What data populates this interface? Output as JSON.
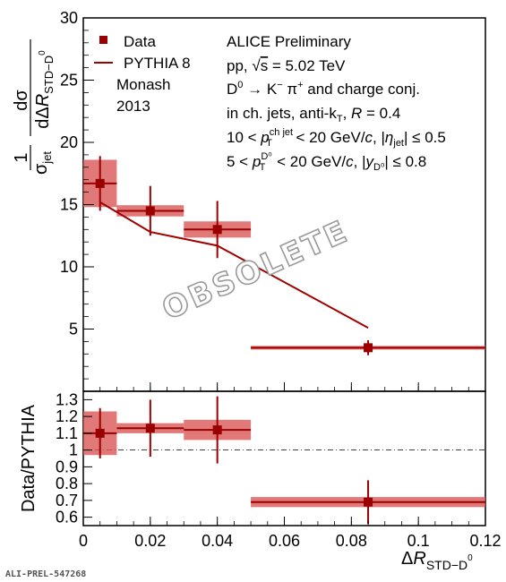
{
  "chart_data": [
    {
      "type": "scatter",
      "xlabel": "ΔR_STD–D⁰",
      "ylabel": "1/σ_jet dσ/dΔR_STD–D⁰",
      "xlim": [
        0,
        0.12
      ],
      "ylim": [
        0,
        30
      ],
      "xticks": [
        "0",
        "0.02",
        "0.04",
        "0.06",
        "0.08",
        "0.1",
        "0.12"
      ],
      "yticks": [
        "5",
        "10",
        "15",
        "20",
        "25",
        "30"
      ],
      "bins": [
        [
          0,
          0.01
        ],
        [
          0.01,
          0.03
        ],
        [
          0.03,
          0.05
        ],
        [
          0.05,
          0.12
        ]
      ],
      "series": [
        {
          "name": "Data",
          "x": [
            0.005,
            0.02,
            0.04,
            0.085
          ],
          "y": [
            16.7,
            14.5,
            13.0,
            3.5
          ],
          "stat_err": [
            2.2,
            2.0,
            2.3,
            0.6
          ],
          "sys_err": [
            1.9,
            0.45,
            0.65,
            0.15
          ]
        },
        {
          "name": "PYTHIA 8",
          "x": [
            0.005,
            0.02,
            0.04,
            0.085
          ],
          "y": [
            15.2,
            12.8,
            11.7,
            5.1
          ]
        }
      ],
      "legend": [
        "Data",
        "PYTHIA 8",
        "Monash",
        "2013"
      ],
      "annotations": [
        "ALICE Preliminary",
        "pp, √s = 5.02 TeV",
        "D⁰ → K⁻ π⁺ and charge conj.",
        "in ch. jets, anti-k_T, R = 0.4",
        "10 < p_T^ch jet < 20 GeV/c, |η_jet| ≤ 0.5",
        "5 < p_T^D⁰ < 20 GeV/c, |y_D⁰| ≤ 0.8"
      ],
      "watermark": "OBSOLETE"
    },
    {
      "type": "scatter",
      "xlabel": "ΔR_STD–D⁰",
      "ylabel": "Data/PYTHIA",
      "xlim": [
        0,
        0.12
      ],
      "ylim": [
        0.55,
        1.35
      ],
      "xticks": [
        "0",
        "0.02",
        "0.04",
        "0.06",
        "0.08",
        "0.1",
        "0.12"
      ],
      "yticks": [
        "0.6",
        "0.7",
        "0.8",
        "0.9",
        "1",
        "1.1",
        "1.2",
        "1.3"
      ],
      "reference_line": 1.0,
      "series": [
        {
          "name": "Data/PYTHIA",
          "x": [
            0.005,
            0.02,
            0.04,
            0.085
          ],
          "y": [
            1.1,
            1.13,
            1.12,
            0.69
          ],
          "stat_err": [
            0.15,
            0.17,
            0.2,
            0.13
          ],
          "sys_err": [
            0.13,
            0.03,
            0.06,
            0.03
          ]
        }
      ]
    }
  ],
  "colors": {
    "data": "#9a0000",
    "sys_box": "#d95757",
    "model": "#a00000"
  },
  "footer_id": "ALI-PREL-547268"
}
